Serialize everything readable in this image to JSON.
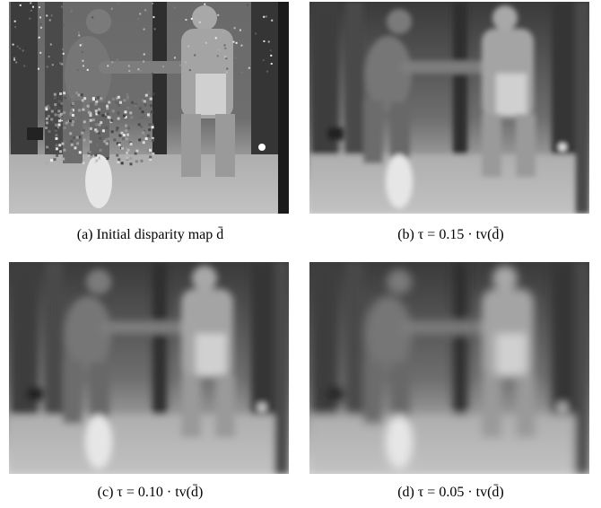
{
  "figure": {
    "panels": [
      {
        "caption": "(a) Initial disparity map d̄"
      },
      {
        "caption": "(b) τ = 0.15 · tv(d̄)"
      },
      {
        "caption": "(c) τ = 0.10 · tv(d̄)"
      },
      {
        "caption": "(d) τ = 0.05 · tv(d̄)"
      }
    ]
  }
}
